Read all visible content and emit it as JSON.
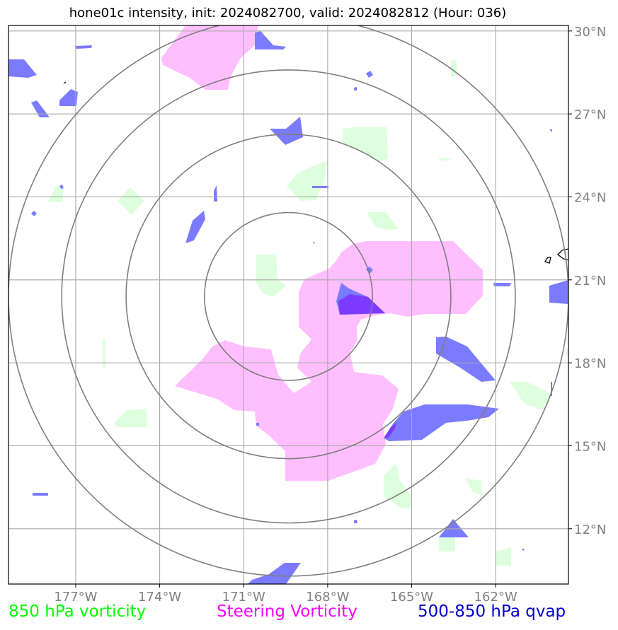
{
  "title": "hone01c intensity, init: 2024082700, valid: 2024082812 (Hour: 036)",
  "lon_labels": [
    "177°W",
    "174°W",
    "171°W",
    "168°W",
    "165°W",
    "162°W"
  ],
  "lat_labels": [
    "30°N",
    "27°N",
    "24°N",
    "21°N",
    "18°N",
    "15°N",
    "12°N"
  ],
  "lon_values": [
    -177,
    -174,
    -171,
    -168,
    -165,
    -162
  ],
  "lat_values": [
    30,
    27,
    24,
    21,
    18,
    15,
    12
  ],
  "extent": {
    "lon_min": -179.4,
    "lon_max": -159.4,
    "lat_min": 10.0,
    "lat_max": 30.2
  },
  "center": {
    "lon": -169.4,
    "lat": 20.4
  },
  "range_rings_deg": [
    3,
    5.8,
    8.1,
    10
  ],
  "legend": {
    "vort850": {
      "label": "850 hPa vorticity",
      "color": "#00ff00"
    },
    "steering": {
      "label": "Steering Vorticity",
      "color": "#ff00ff"
    },
    "qvap": {
      "label": "500-850 hPa qvap",
      "color": "#0000cd"
    }
  },
  "colors": {
    "steering_fill": "#ffbfff",
    "qvap_fill": "#7b7bff",
    "vort850_fill": "#ddffdd",
    "overlap_fill": "#7d3bff",
    "grid": "#a9a9a9",
    "ring": "#7f7f7f",
    "tick_label": "#808080"
  }
}
